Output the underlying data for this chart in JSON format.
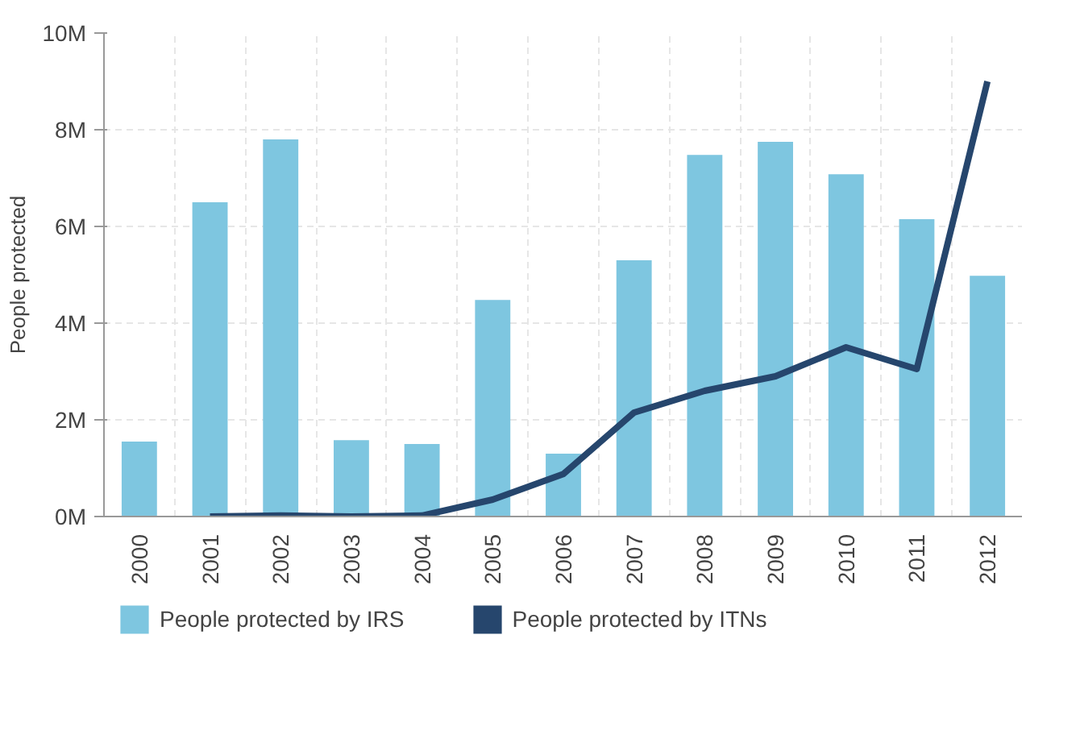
{
  "chart_data": {
    "type": "bar",
    "ylabel": "People protected",
    "categories": [
      "2000",
      "2001",
      "2002",
      "2003",
      "2004",
      "2005",
      "2006",
      "2007",
      "2008",
      "2009",
      "2010",
      "2011",
      "2012"
    ],
    "series": [
      {
        "name": "People protected by IRS",
        "color": "#7ec6e0",
        "values": [
          1550000,
          6500000,
          7800000,
          1580000,
          1500000,
          4480000,
          1300000,
          5300000,
          7480000,
          7750000,
          7080000,
          6150000,
          4980000
        ]
      },
      {
        "name": "People protected by ITNs",
        "type": "line",
        "color": "#26466d",
        "values": [
          null,
          0,
          20000,
          0,
          20000,
          350000,
          880000,
          2150000,
          2600000,
          2900000,
          3500000,
          3050000,
          9000000
        ]
      }
    ],
    "ylim": [
      0,
      10000000
    ],
    "yticks": [
      {
        "value": 0,
        "label": "0M"
      },
      {
        "value": 2000000,
        "label": "2M"
      },
      {
        "value": 4000000,
        "label": "4M"
      },
      {
        "value": 6000000,
        "label": "6M"
      },
      {
        "value": 8000000,
        "label": "8M"
      },
      {
        "value": 10000000,
        "label": "10M"
      }
    ],
    "grid": true,
    "legend": "bottom",
    "marker": "none",
    "line_style": "solid"
  }
}
